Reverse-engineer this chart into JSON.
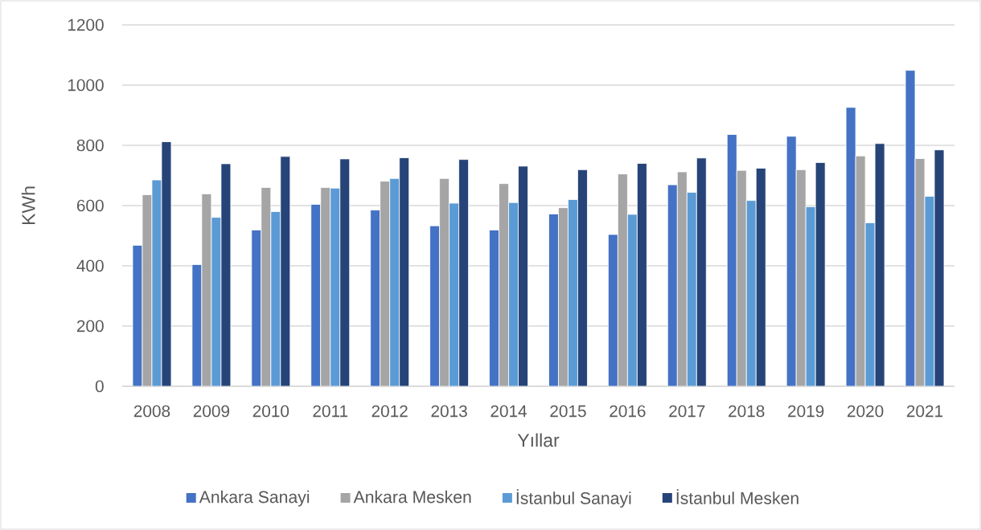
{
  "chart_data": {
    "type": "bar",
    "xlabel": "Yıllar",
    "ylabel": "KWh",
    "categories": [
      "2008",
      "2009",
      "2010",
      "2011",
      "2012",
      "2013",
      "2014",
      "2015",
      "2016",
      "2017",
      "2018",
      "2019",
      "2020",
      "2021"
    ],
    "series": [
      {
        "name": "Ankara Sanayi",
        "color": "#4472c4",
        "values": [
          468,
          404,
          519,
          604,
          585,
          533,
          519,
          572,
          504,
          669,
          836,
          830,
          926,
          1049
        ]
      },
      {
        "name": "Ankara Mesken",
        "color": "#a5a5a5",
        "values": [
          636,
          639,
          660,
          660,
          681,
          690,
          673,
          593,
          705,
          712,
          717,
          719,
          765,
          756
        ]
      },
      {
        "name": "İstanbul Sanayi",
        "color": "#5b9bd5",
        "values": [
          685,
          561,
          580,
          658,
          690,
          608,
          610,
          620,
          571,
          644,
          617,
          596,
          543,
          631
        ]
      },
      {
        "name": "İstanbul Mesken",
        "color": "#264478",
        "values": [
          812,
          739,
          763,
          755,
          759,
          753,
          731,
          719,
          740,
          758,
          724,
          743,
          806,
          785
        ]
      }
    ],
    "ylim": [
      0,
      1200
    ],
    "yticks": [
      0,
      200,
      400,
      600,
      800,
      1000,
      1200
    ],
    "grid": "y",
    "legend": "bottom"
  }
}
